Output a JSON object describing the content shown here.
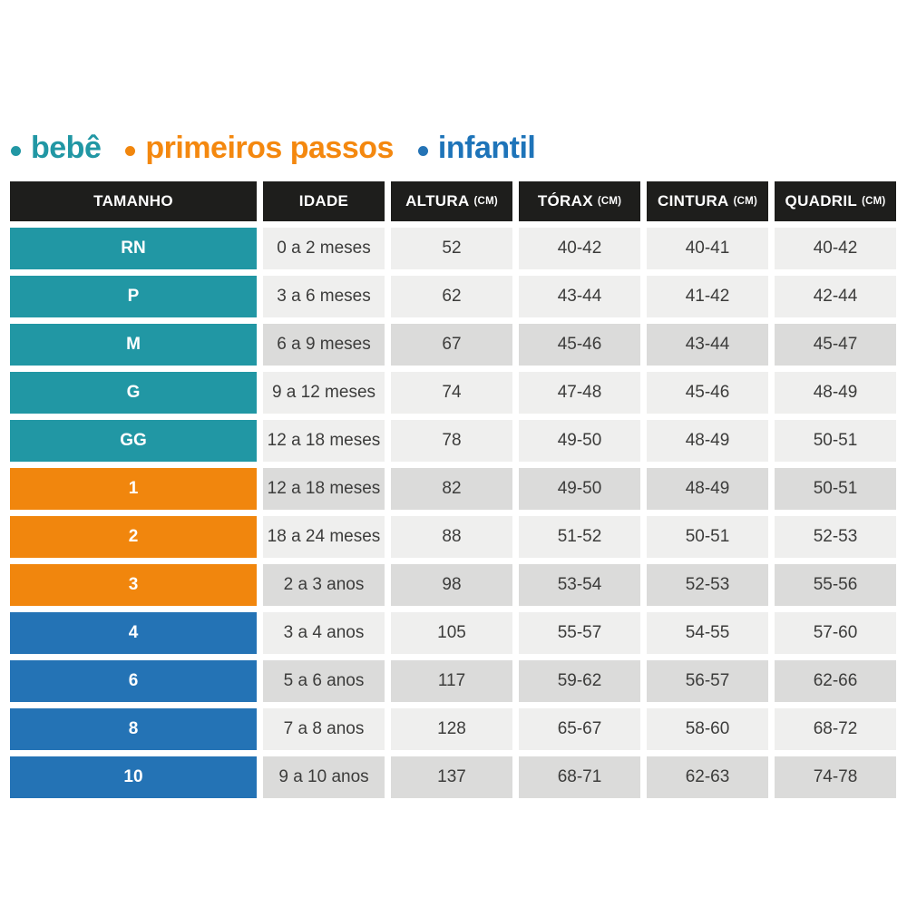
{
  "colors": {
    "teal": "#2197A4",
    "orange": "#F1860D",
    "blue": "#2473B5",
    "header_bg": "#1E1E1C",
    "row_light": "#EFEFEE",
    "row_dark": "#DBDBDA",
    "cell_text": "#3C3C3B"
  },
  "legend": {
    "items": [
      {
        "label": "bebê",
        "color": "#2197A4"
      },
      {
        "label": "primeiros passos",
        "color": "#F4880F"
      },
      {
        "label": "infantil",
        "color": "#1E74B9"
      }
    ]
  },
  "table": {
    "headers": [
      {
        "label": "TAMANHO",
        "unit": ""
      },
      {
        "label": "IDADE",
        "unit": ""
      },
      {
        "label": "ALTURA",
        "unit": "(CM)"
      },
      {
        "label": "TÓRAX",
        "unit": "(CM)"
      },
      {
        "label": "CINTURA",
        "unit": "(CM)"
      },
      {
        "label": "QUADRIL",
        "unit": "(CM)"
      }
    ],
    "rows": [
      {
        "size": "RN",
        "group": "bebê",
        "shade": "light",
        "age": "0 a 2 meses",
        "height": "52",
        "chest": "40-42",
        "waist": "40-41",
        "hip": "40-42"
      },
      {
        "size": "P",
        "group": "bebê",
        "shade": "light",
        "age": "3 a 6 meses",
        "height": "62",
        "chest": "43-44",
        "waist": "41-42",
        "hip": "42-44"
      },
      {
        "size": "M",
        "group": "bebê",
        "shade": "dark",
        "age": "6 a 9 meses",
        "height": "67",
        "chest": "45-46",
        "waist": "43-44",
        "hip": "45-47"
      },
      {
        "size": "G",
        "group": "bebê",
        "shade": "light",
        "age": "9 a 12 meses",
        "height": "74",
        "chest": "47-48",
        "waist": "45-46",
        "hip": "48-49"
      },
      {
        "size": "GG",
        "group": "bebê",
        "shade": "light",
        "age": "12 a 18 meses",
        "height": "78",
        "chest": "49-50",
        "waist": "48-49",
        "hip": "50-51"
      },
      {
        "size": "1",
        "group": "primeiros passos",
        "shade": "dark",
        "age": "12 a 18 meses",
        "height": "82",
        "chest": "49-50",
        "waist": "48-49",
        "hip": "50-51"
      },
      {
        "size": "2",
        "group": "primeiros passos",
        "shade": "light",
        "age": "18 a 24 meses",
        "height": "88",
        "chest": "51-52",
        "waist": "50-51",
        "hip": "52-53"
      },
      {
        "size": "3",
        "group": "primeiros passos",
        "shade": "dark",
        "age": "2 a 3 anos",
        "height": "98",
        "chest": "53-54",
        "waist": "52-53",
        "hip": "55-56"
      },
      {
        "size": "4",
        "group": "infantil",
        "shade": "light",
        "age": "3 a 4 anos",
        "height": "105",
        "chest": "55-57",
        "waist": "54-55",
        "hip": "57-60"
      },
      {
        "size": "6",
        "group": "infantil",
        "shade": "dark",
        "age": "5 a 6 anos",
        "height": "117",
        "chest": "59-62",
        "waist": "56-57",
        "hip": "62-66"
      },
      {
        "size": "8",
        "group": "infantil",
        "shade": "light",
        "age": "7 a 8 anos",
        "height": "128",
        "chest": "65-67",
        "waist": "58-60",
        "hip": "68-72"
      },
      {
        "size": "10",
        "group": "infantil",
        "shade": "dark",
        "age": "9 a 10 anos",
        "height": "137",
        "chest": "68-71",
        "waist": "62-63",
        "hip": "74-78"
      }
    ]
  },
  "chart_data": {
    "type": "table",
    "title": "",
    "legend": [
      "bebê",
      "primeiros passos",
      "infantil"
    ],
    "legend_position": "top",
    "columns": [
      "TAMANHO",
      "IDADE",
      "ALTURA (CM)",
      "TÓRAX (CM)",
      "CINTURA (CM)",
      "QUADRIL (CM)"
    ],
    "rows": [
      [
        "RN",
        "0 a 2 meses",
        "52",
        "40-42",
        "40-41",
        "40-42"
      ],
      [
        "P",
        "3 a 6 meses",
        "62",
        "43-44",
        "41-42",
        "42-44"
      ],
      [
        "M",
        "6 a 9 meses",
        "67",
        "45-46",
        "43-44",
        "45-47"
      ],
      [
        "G",
        "9 a 12 meses",
        "74",
        "47-48",
        "45-46",
        "48-49"
      ],
      [
        "GG",
        "12 a 18 meses",
        "78",
        "49-50",
        "48-49",
        "50-51"
      ],
      [
        "1",
        "12 a 18 meses",
        "82",
        "49-50",
        "48-49",
        "50-51"
      ],
      [
        "2",
        "18 a 24 meses",
        "88",
        "51-52",
        "50-51",
        "52-53"
      ],
      [
        "3",
        "2 a 3 anos",
        "98",
        "53-54",
        "52-53",
        "55-56"
      ],
      [
        "4",
        "3 a 4 anos",
        "105",
        "55-57",
        "54-55",
        "57-60"
      ],
      [
        "6",
        "5 a 6 anos",
        "117",
        "59-62",
        "56-57",
        "62-66"
      ],
      [
        "8",
        "7 a 8 anos",
        "128",
        "65-67",
        "58-60",
        "68-72"
      ],
      [
        "10",
        "9 a 10 anos",
        "137",
        "68-71",
        "62-63",
        "74-78"
      ]
    ],
    "row_groups": {
      "bebê": [
        "RN",
        "P",
        "M",
        "G",
        "GG"
      ],
      "primeiros passos": [
        "1",
        "2",
        "3"
      ],
      "infantil": [
        "4",
        "6",
        "8",
        "10"
      ]
    }
  }
}
